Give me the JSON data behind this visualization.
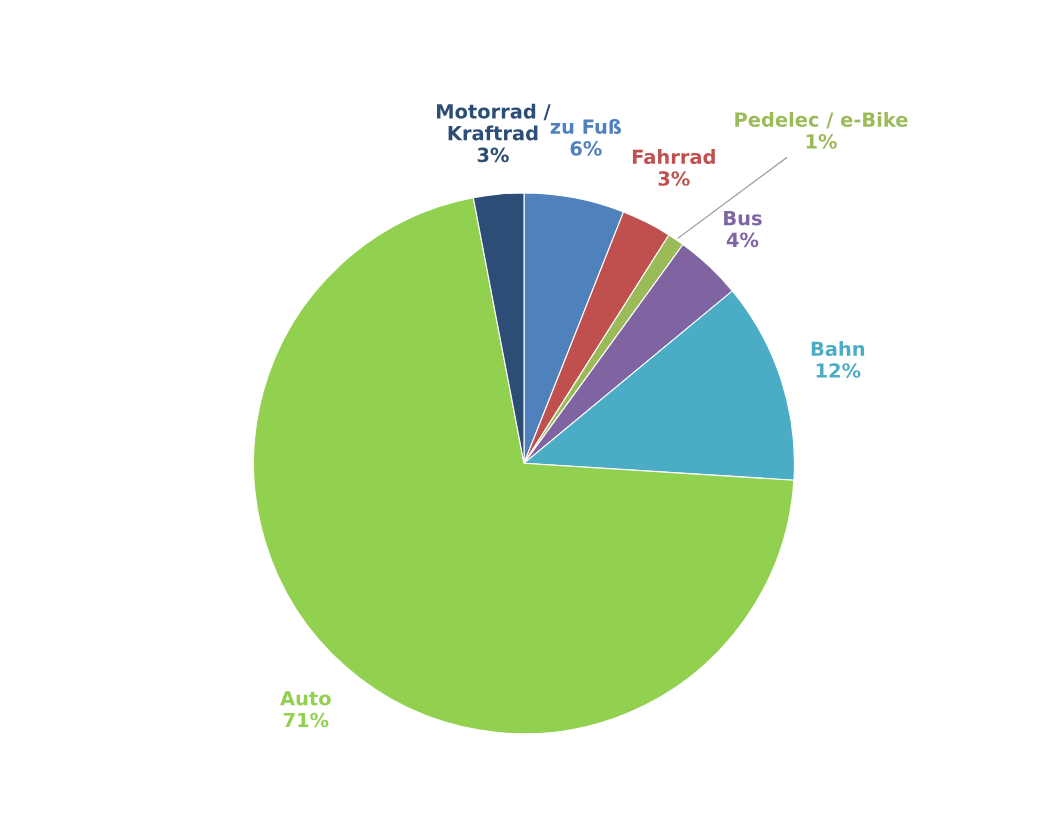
{
  "chart_data": {
    "type": "pie",
    "categories": [
      "zu Fuß",
      "Fahrrad",
      "Pedelec / e-Bike",
      "Bus",
      "Bahn",
      "Auto",
      "Motorrad /\nKraftrad"
    ],
    "values": [
      6,
      3,
      1,
      4,
      12,
      71,
      3
    ],
    "value_labels": [
      "6%",
      "3%",
      "1%",
      "4%",
      "12%",
      "71%",
      "3%"
    ],
    "colors": [
      "#4f81bd",
      "#c0504d",
      "#9bbb59",
      "#8064a2",
      "#4bacc6",
      "#92d050",
      "#2c4d75"
    ],
    "legend": false
  }
}
